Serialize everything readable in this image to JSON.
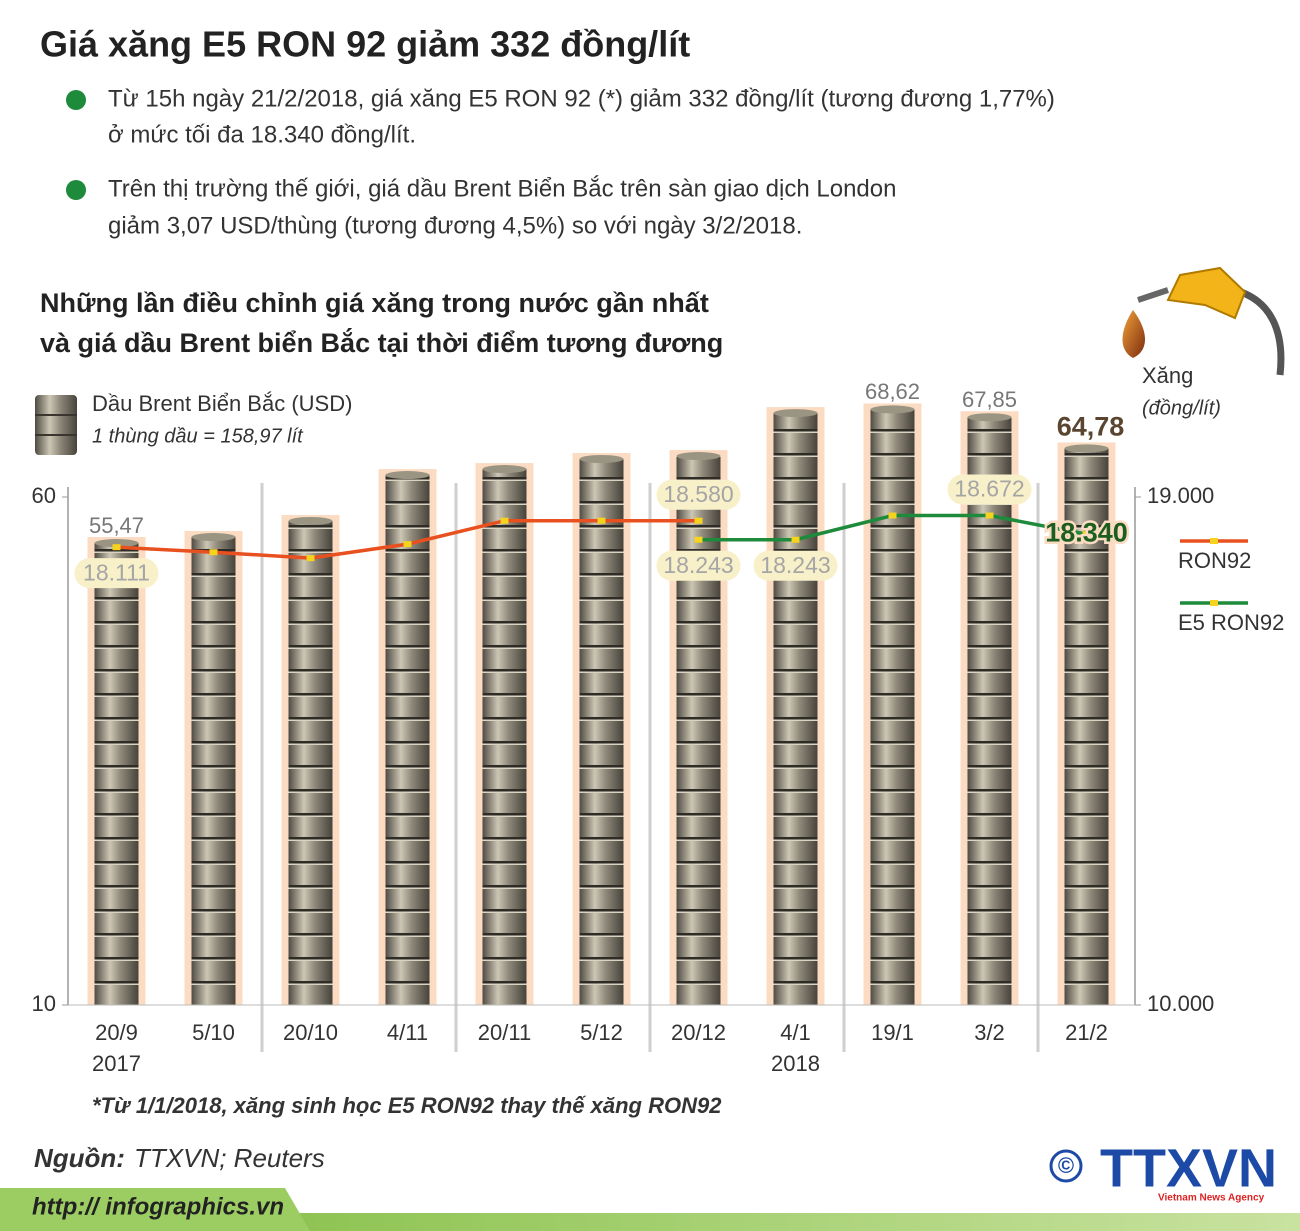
{
  "header": {
    "title": "Giá xăng E5 RON 92 giảm 332 đồng/lít",
    "bullets": [
      [
        "Từ 15h ngày 21/2/2018, giá xăng E5 RON 92 (*) giảm 332 đồng/lít (tương đương 1,77%)",
        "ở mức tối đa 18.340 đồng/lít."
      ],
      [
        "Trên thị trường thế giới, giá dầu Brent Biển Bắc trên sàn giao dịch London",
        "giảm 3,07 USD/thùng (tương đương 4,5%) so với ngày 3/2/2018."
      ]
    ]
  },
  "chart_data": {
    "type": "bar",
    "title": [
      "Những lần điều chỉnh giá xăng trong nước gần nhất",
      "và giá dầu Brent biển Bắc tại thời điểm tương đương"
    ],
    "categories": [
      "20/9",
      "5/10",
      "20/10",
      "4/11",
      "20/11",
      "5/12",
      "20/12",
      "4/1",
      "19/1",
      "3/2",
      "21/2"
    ],
    "year_labels": [
      "2017",
      null,
      null,
      null,
      null,
      null,
      null,
      "2018",
      null,
      null,
      null
    ],
    "bar_series": {
      "name": "Dầu Brent Biển Bắc (USD)",
      "note": "1 thùng dầu = 158,97 lít",
      "values": [
        55.47,
        56.06,
        57.64,
        62.16,
        62.75,
        63.74,
        64.03,
        68.26,
        68.62,
        67.85,
        64.78
      ],
      "value_labels": [
        "55,47",
        null,
        null,
        null,
        null,
        null,
        null,
        null,
        "68,62",
        "67,85",
        "64,78"
      ]
    },
    "series": [
      {
        "name": "RON92",
        "color": "#e8501f",
        "axis": "y2",
        "values": [
          18111,
          18022,
          17917,
          18165,
          18580,
          18580,
          18580,
          null,
          null,
          null,
          null
        ],
        "value_labels": [
          "18.111",
          null,
          null,
          null,
          null,
          null,
          "18.580",
          null,
          null,
          null,
          null
        ]
      },
      {
        "name": "E5 RON92",
        "color": "#1e8a3c",
        "axis": "y2",
        "values": [
          null,
          null,
          null,
          null,
          null,
          null,
          18243,
          18243,
          18672,
          18672,
          18340
        ],
        "value_labels": [
          null,
          null,
          null,
          null,
          null,
          null,
          "18.243",
          "18.243",
          null,
          "18.672",
          "18.340"
        ]
      }
    ],
    "ylim": [
      10,
      60
    ],
    "yticks": [
      10,
      60
    ],
    "y2lim": [
      10000,
      19000
    ],
    "y2ticks": [
      {
        "value": 10000,
        "label": "10.000"
      },
      {
        "value": 19000,
        "label": "19.000"
      }
    ],
    "y2_label": [
      "Xăng",
      "(đồng/lít)"
    ],
    "footnote": "*Từ 1/1/2018, xăng sinh học E5 RON92 thay thế xăng RON92"
  },
  "footer": {
    "source_label": "Nguồn:",
    "source": "TTXVN; Reuters",
    "url": "http:// infographics.vn",
    "copyright": "©",
    "logo": "TTXVN",
    "logo_sub": "Vietnam News Agency"
  }
}
